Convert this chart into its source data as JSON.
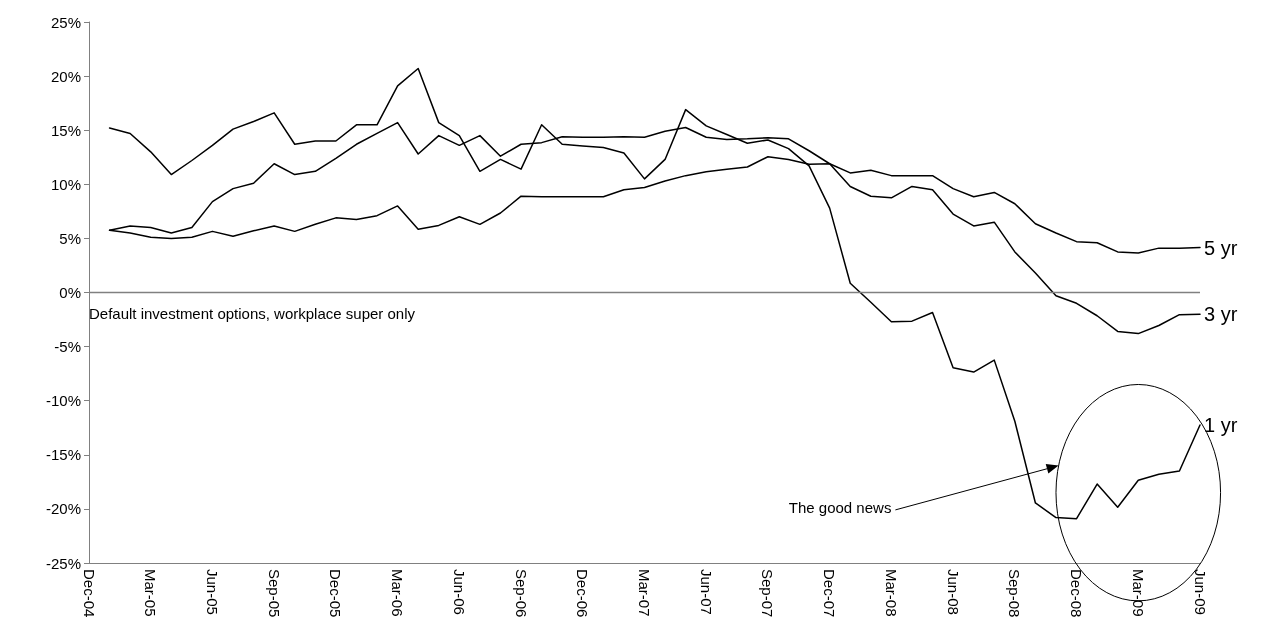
{
  "chart_data": {
    "type": "line",
    "categories": [
      "Dec-04",
      null,
      null,
      "Mar-05",
      null,
      null,
      "Jun-05",
      null,
      null,
      "Sep-05",
      null,
      null,
      "Dec-05",
      null,
      null,
      "Mar-06",
      null,
      null,
      "Jun-06",
      null,
      null,
      "Sep-06",
      null,
      null,
      "Dec-06",
      null,
      null,
      "Mar-07",
      null,
      null,
      "Jun-07",
      null,
      null,
      "Sep-07",
      null,
      null,
      "Dec-07",
      null,
      null,
      "Mar-08",
      null,
      null,
      "Jun-08",
      null,
      null,
      "Sep-08",
      null,
      null,
      "Dec-08",
      null,
      null,
      "Mar-09",
      null,
      null,
      "Jun-09"
    ],
    "series": [
      {
        "name": "5 yr",
        "color": "#000000",
        "values": [
          null,
          5.75,
          5.5,
          5.1,
          5.0,
          5.1,
          5.65,
          5.2,
          5.7,
          6.15,
          5.65,
          6.3,
          6.9,
          6.75,
          7.1,
          8.0,
          5.85,
          6.2,
          7.0,
          6.3,
          7.35,
          8.9,
          8.85,
          8.85,
          8.85,
          8.85,
          9.5,
          9.7,
          10.3,
          10.8,
          11.15,
          11.4,
          11.6,
          12.55,
          12.3,
          11.85,
          11.9,
          11.05,
          11.3,
          10.8,
          10.8,
          10.8,
          9.6,
          8.85,
          9.25,
          8.2,
          6.35,
          5.5,
          4.7,
          4.6,
          3.75,
          3.65,
          4.1,
          4.1,
          4.15
        ]
      },
      {
        "name": "3 yr",
        "color": "#000000",
        "values": [
          null,
          5.75,
          6.15,
          6.0,
          5.5,
          6.0,
          8.4,
          9.6,
          10.1,
          11.9,
          10.9,
          11.2,
          12.4,
          13.7,
          14.7,
          15.7,
          12.8,
          14.5,
          13.6,
          14.5,
          12.6,
          13.7,
          13.85,
          14.4,
          14.35,
          14.35,
          14.4,
          14.35,
          14.9,
          15.25,
          14.35,
          14.15,
          14.2,
          14.3,
          14.2,
          13.1,
          11.9,
          9.8,
          8.9,
          8.75,
          9.8,
          9.5,
          7.25,
          6.15,
          6.5,
          3.75,
          1.8,
          -0.3,
          -1.0,
          -2.15,
          -3.6,
          -3.8,
          -3.05,
          -2.05,
          -2.0
        ]
      },
      {
        "name": "1 yr",
        "color": "#000000",
        "values": [
          null,
          15.2,
          14.7,
          13.0,
          10.9,
          12.2,
          13.6,
          15.1,
          15.8,
          16.6,
          13.7,
          14.0,
          14.0,
          15.5,
          15.5,
          19.1,
          20.7,
          15.7,
          14.5,
          11.2,
          12.3,
          11.4,
          15.5,
          13.7,
          13.55,
          13.4,
          12.9,
          10.5,
          12.3,
          16.9,
          15.4,
          14.6,
          13.8,
          14.1,
          13.3,
          11.7,
          7.8,
          0.85,
          -0.9,
          -2.7,
          -2.65,
          -1.85,
          -6.95,
          -7.35,
          -6.25,
          -11.9,
          -19.45,
          -20.8,
          -20.9,
          -17.7,
          -19.85,
          -17.35,
          -16.8,
          -16.5,
          -12.25
        ]
      }
    ],
    "ylim": [
      -25,
      25
    ],
    "yticks": [
      {
        "value": -25,
        "label": "-25%"
      },
      {
        "value": -20,
        "label": "-20%"
      },
      {
        "value": -15,
        "label": "-15%"
      },
      {
        "value": -10,
        "label": "-10%"
      },
      {
        "value": -5,
        "label": "-5%"
      },
      {
        "value": 0,
        "label": "0%"
      },
      {
        "value": 5,
        "label": "5%"
      },
      {
        "value": 10,
        "label": "10%"
      },
      {
        "value": 15,
        "label": "15%"
      },
      {
        "value": 20,
        "label": "20%"
      },
      {
        "value": 25,
        "label": "25%"
      }
    ],
    "ref_lines": [
      {
        "axis": "y",
        "value": 0,
        "color": "#808080"
      }
    ],
    "annotations": [
      "Default investment options, workplace super only",
      "The good news"
    ],
    "grid": false,
    "legend": false,
    "marker": "none",
    "line_style": "solid"
  }
}
